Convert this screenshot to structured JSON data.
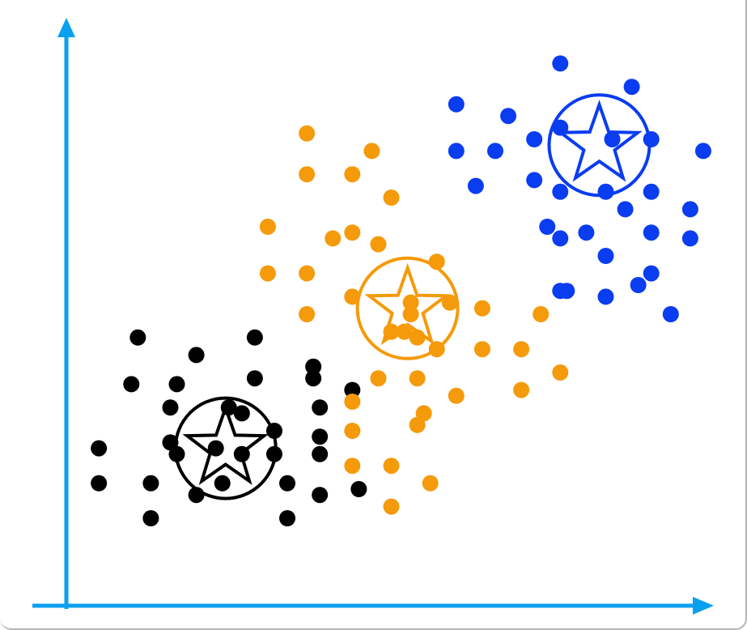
{
  "colors": {
    "axis": "#0aa0f0",
    "cluster_black": "#000000",
    "cluster_orange": "#f59a0a",
    "cluster_blue": "#0a3cf0",
    "frame": "#b5b5b5"
  },
  "icons": {
    "centroid": "star-in-circle-icon",
    "axis_arrow": "arrow-head-icon"
  },
  "chart_data": {
    "type": "scatter",
    "title": "",
    "xlabel": "",
    "ylabel": "",
    "grid": false,
    "legend": "none",
    "xlim": [
      0,
      100
    ],
    "ylim": [
      0,
      100
    ],
    "series": [
      {
        "color": "#000000",
        "centroid": [
          24.5,
          27
        ],
        "points": [
          [
            11,
            46
          ],
          [
            20,
            43
          ],
          [
            29,
            46
          ],
          [
            38,
            41
          ],
          [
            10,
            38
          ],
          [
            17,
            38
          ],
          [
            29,
            39
          ],
          [
            38,
            39
          ],
          [
            44,
            37
          ],
          [
            16,
            34
          ],
          [
            25,
            34
          ],
          [
            39,
            34
          ],
          [
            5,
            27
          ],
          [
            16,
            28
          ],
          [
            27,
            33
          ],
          [
            32,
            30
          ],
          [
            39,
            29
          ],
          [
            17,
            26
          ],
          [
            23,
            27
          ],
          [
            5,
            21
          ],
          [
            13,
            21
          ],
          [
            24,
            21
          ],
          [
            27,
            26
          ],
          [
            32,
            26
          ],
          [
            39,
            26
          ],
          [
            39,
            19
          ],
          [
            20,
            19
          ],
          [
            34,
            21
          ],
          [
            45,
            20
          ],
          [
            13,
            15
          ],
          [
            34,
            15
          ]
        ]
      },
      {
        "color": "#f59a0a",
        "centroid": [
          52.5,
          51
        ],
        "points": [
          [
            37,
            81
          ],
          [
            47,
            78
          ],
          [
            37,
            74
          ],
          [
            44,
            74
          ],
          [
            50,
            70
          ],
          [
            31,
            65
          ],
          [
            41,
            63
          ],
          [
            44,
            64
          ],
          [
            48,
            62
          ],
          [
            31,
            57
          ],
          [
            37,
            57
          ],
          [
            57,
            59
          ],
          [
            44,
            53
          ],
          [
            37,
            50
          ],
          [
            53,
            52
          ],
          [
            59,
            52
          ],
          [
            64,
            51
          ],
          [
            73,
            50
          ],
          [
            50,
            47
          ],
          [
            54,
            46
          ],
          [
            57,
            44
          ],
          [
            64,
            44
          ],
          [
            70,
            44
          ],
          [
            48,
            39
          ],
          [
            54,
            39
          ],
          [
            76,
            40
          ],
          [
            44,
            35
          ],
          [
            60,
            36
          ],
          [
            70,
            37
          ],
          [
            55,
            33
          ],
          [
            44,
            30
          ],
          [
            54,
            31
          ],
          [
            44,
            24
          ],
          [
            50,
            24
          ],
          [
            56,
            21
          ],
          [
            50,
            17
          ],
          [
            53,
            50
          ],
          [
            52,
            47
          ]
        ]
      },
      {
        "color": "#0a3cf0",
        "centroid": [
          82,
          79
        ],
        "points": [
          [
            76,
            93
          ],
          [
            87,
            89
          ],
          [
            60,
            86
          ],
          [
            68,
            84
          ],
          [
            72,
            80
          ],
          [
            84,
            80
          ],
          [
            60,
            78
          ],
          [
            66,
            78
          ],
          [
            76,
            82
          ],
          [
            90,
            80
          ],
          [
            98,
            78
          ],
          [
            63,
            72
          ],
          [
            72,
            73
          ],
          [
            76,
            71
          ],
          [
            83,
            71
          ],
          [
            90,
            71
          ],
          [
            96,
            68
          ],
          [
            86,
            68
          ],
          [
            80,
            64
          ],
          [
            96,
            63
          ],
          [
            90,
            64
          ],
          [
            83,
            60
          ],
          [
            76,
            63
          ],
          [
            90,
            57
          ],
          [
            83,
            53
          ],
          [
            76,
            54
          ],
          [
            93,
            50
          ],
          [
            77,
            54
          ],
          [
            88,
            55
          ],
          [
            74,
            65
          ]
        ]
      }
    ]
  }
}
